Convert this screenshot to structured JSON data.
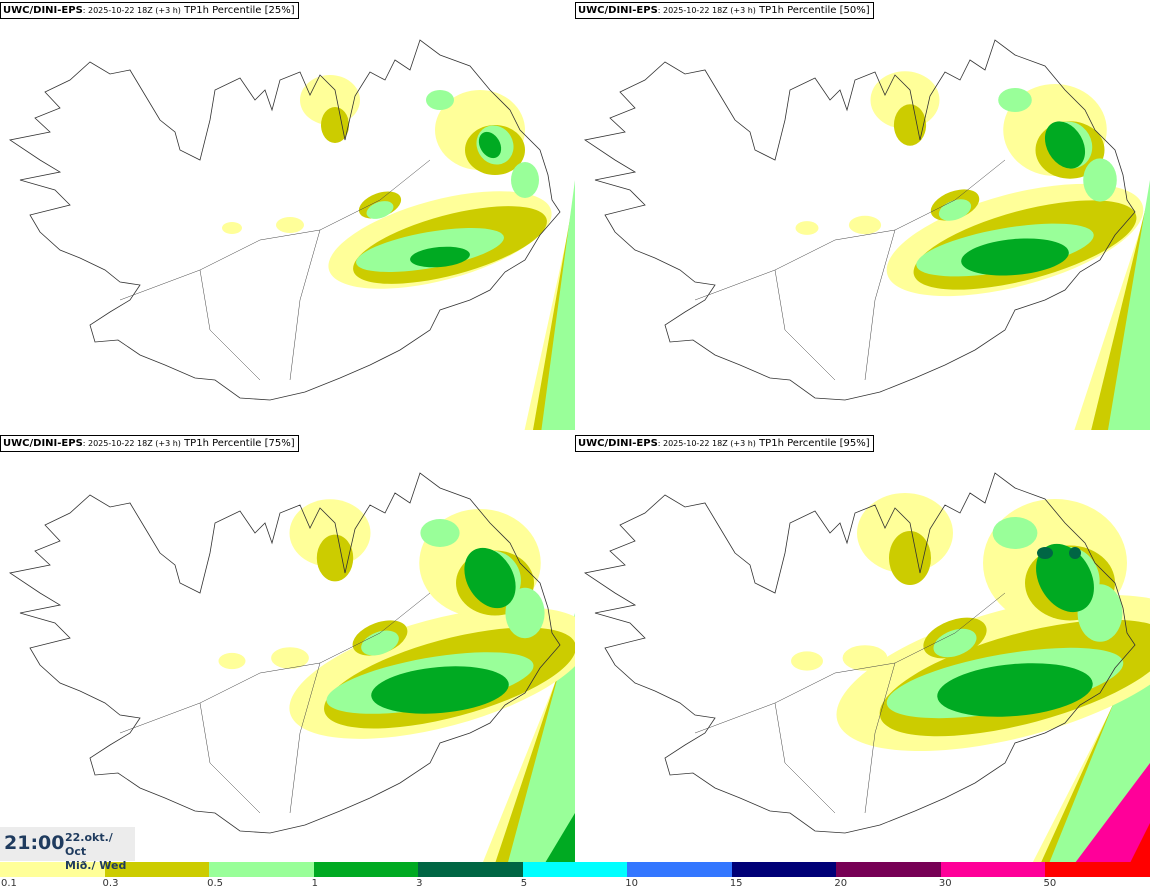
{
  "panels": [
    {
      "model": "UWC/DINI-EPS",
      "run": ": 2025-10-22 18Z (+3 h)",
      "field": " TP1h Percentile [25%]"
    },
    {
      "model": "UWC/DINI-EPS",
      "run": ": 2025-10-22 18Z (+3 h)",
      "field": " TP1h Percentile [50%]"
    },
    {
      "model": "UWC/DINI-EPS",
      "run": ": 2025-10-22 18Z (+3 h)",
      "field": " TP1h Percentile [75%]"
    },
    {
      "model": "UWC/DINI-EPS",
      "run": ": 2025-10-22 18Z (+3 h)",
      "field": " TP1h Percentile [95%]"
    }
  ],
  "valid_time": {
    "time": "21:00",
    "date_line1": "22.okt./ Oct",
    "date_line2": "Mið./ Wed"
  },
  "legend": {
    "colors": [
      "#ffff99",
      "#cccc00",
      "#99ff99",
      "#00aa22",
      "#006644",
      "#00ffff",
      "#3377ff",
      "#000077",
      "#770055",
      "#ff0099",
      "#ff0000"
    ],
    "labels": [
      "0.1",
      "0.3",
      "0.5",
      "1",
      "3",
      "5",
      "10",
      "15",
      "20",
      "30",
      "50"
    ]
  }
}
